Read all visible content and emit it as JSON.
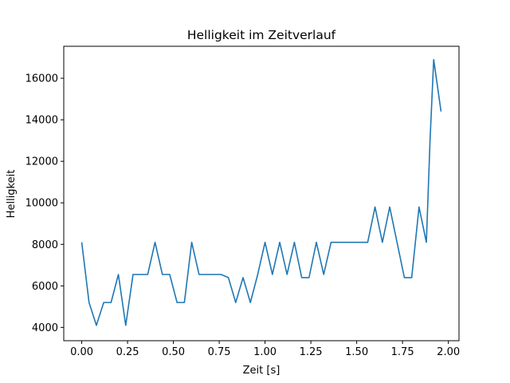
{
  "chart_data": {
    "type": "line",
    "title": "Helligkeit im Zeitverlauf",
    "xlabel": "Zeit [s]",
    "ylabel": "Helligkeit",
    "xlim": [
      -0.098,
      2.058
    ],
    "ylim": [
      3360,
      17540
    ],
    "x_ticks": [
      0.0,
      0.25,
      0.5,
      0.75,
      1.0,
      1.25,
      1.5,
      1.75,
      2.0
    ],
    "x_tick_labels": [
      "0.00",
      "0.25",
      "0.50",
      "0.75",
      "1.00",
      "1.25",
      "1.50",
      "1.75",
      "2.00"
    ],
    "y_ticks": [
      4000,
      6000,
      8000,
      10000,
      12000,
      14000,
      16000
    ],
    "y_tick_labels": [
      "4000",
      "6000",
      "8000",
      "10000",
      "12000",
      "14000",
      "16000"
    ],
    "grid": false,
    "series": [
      {
        "color": "#1f77b4",
        "x": [
          0.0,
          0.04,
          0.08,
          0.12,
          0.16,
          0.2,
          0.24,
          0.28,
          0.32,
          0.36,
          0.4,
          0.44,
          0.48,
          0.52,
          0.56,
          0.6,
          0.64,
          0.68,
          0.72,
          0.76,
          0.8,
          0.84,
          0.88,
          0.92,
          0.96,
          1.0,
          1.04,
          1.08,
          1.12,
          1.16,
          1.2,
          1.24,
          1.28,
          1.32,
          1.36,
          1.4,
          1.44,
          1.48,
          1.52,
          1.56,
          1.6,
          1.64,
          1.68,
          1.72,
          1.76,
          1.8,
          1.84,
          1.88,
          1.9,
          1.92,
          1.96
        ],
        "y": [
          8100,
          5200,
          4100,
          5200,
          5200,
          6550,
          4100,
          6550,
          6550,
          6550,
          8100,
          6550,
          6550,
          5200,
          5200,
          8100,
          6550,
          6550,
          6550,
          6550,
          6400,
          5200,
          6400,
          5200,
          6550,
          8100,
          6550,
          8100,
          6550,
          8100,
          6400,
          6400,
          8100,
          6550,
          8100,
          8100,
          8100,
          8100,
          8100,
          8100,
          9800,
          8100,
          9800,
          8100,
          6400,
          6400,
          9800,
          8100,
          13000,
          16900,
          14400
        ]
      }
    ]
  }
}
